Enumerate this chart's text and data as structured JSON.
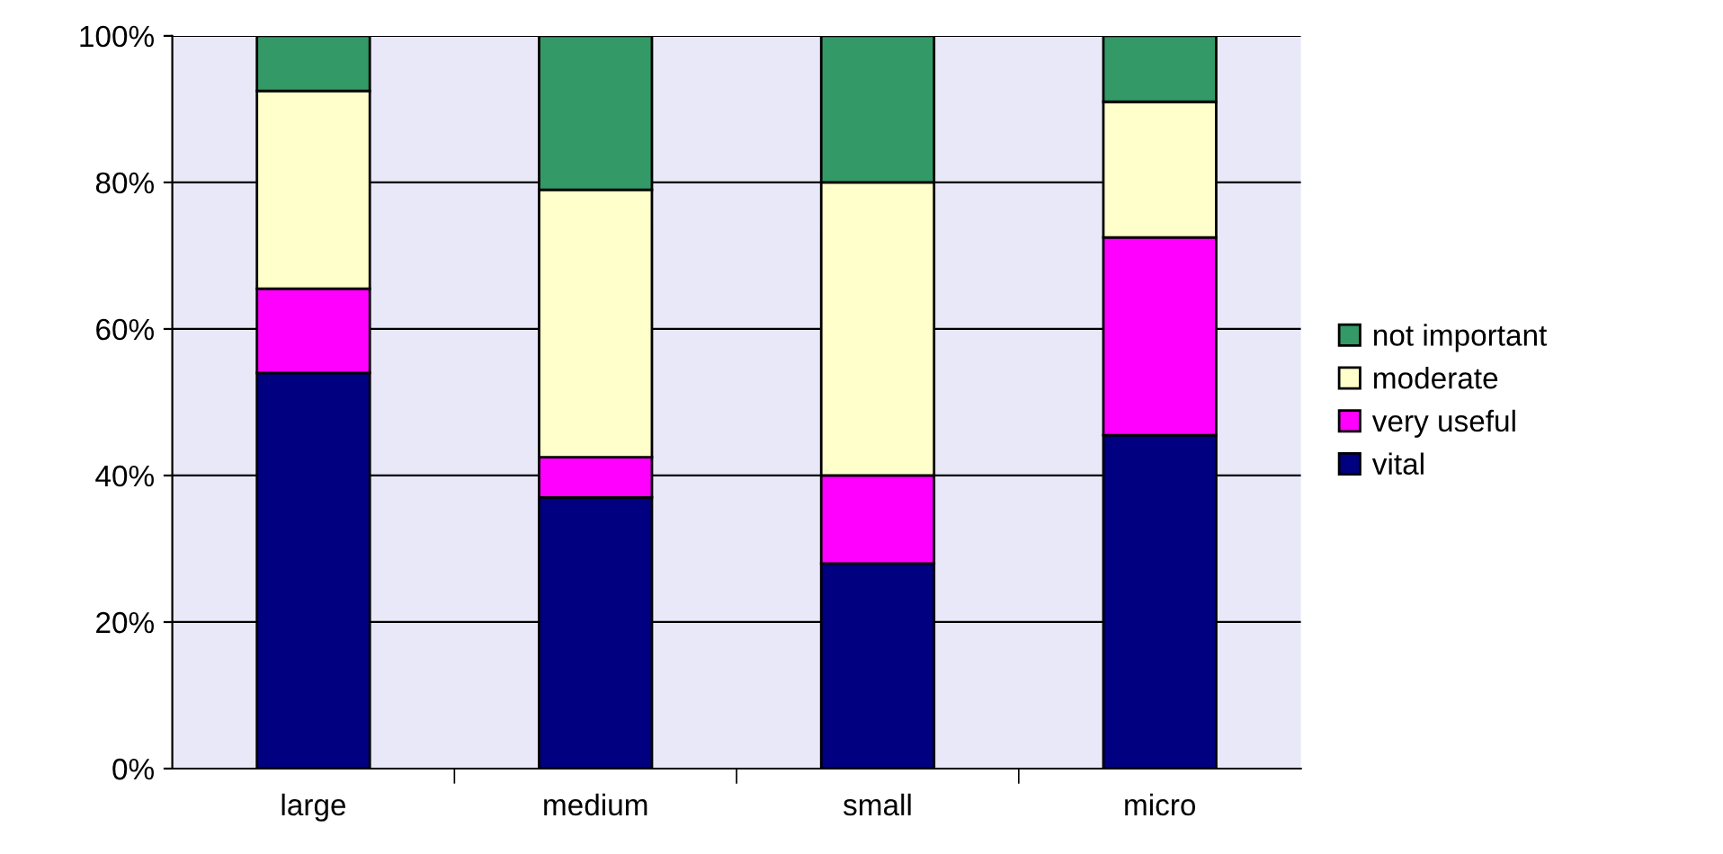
{
  "chart_data": {
    "type": "bar",
    "stacked": true,
    "categories": [
      "large",
      "medium",
      "small",
      "micro"
    ],
    "series": [
      {
        "name": "vital",
        "color": "#000080",
        "values": [
          54,
          37,
          28,
          45.5
        ]
      },
      {
        "name": "very useful",
        "color": "#ff00ff",
        "values": [
          11.5,
          5.5,
          12,
          27
        ]
      },
      {
        "name": "moderate",
        "color": "#ffffcc",
        "values": [
          27,
          36.5,
          40,
          18.5
        ]
      },
      {
        "name": "not important",
        "color": "#339966",
        "values": [
          7.5,
          21,
          20,
          9
        ]
      }
    ],
    "ylim": [
      0,
      100
    ],
    "yticks": [
      {
        "value": 0,
        "label": "0%"
      },
      {
        "value": 20,
        "label": "20%"
      },
      {
        "value": 40,
        "label": "40%"
      },
      {
        "value": 60,
        "label": "60%"
      },
      {
        "value": 80,
        "label": "80%"
      },
      {
        "value": 100,
        "label": "100%"
      }
    ],
    "grid": "y",
    "legend": "right"
  }
}
